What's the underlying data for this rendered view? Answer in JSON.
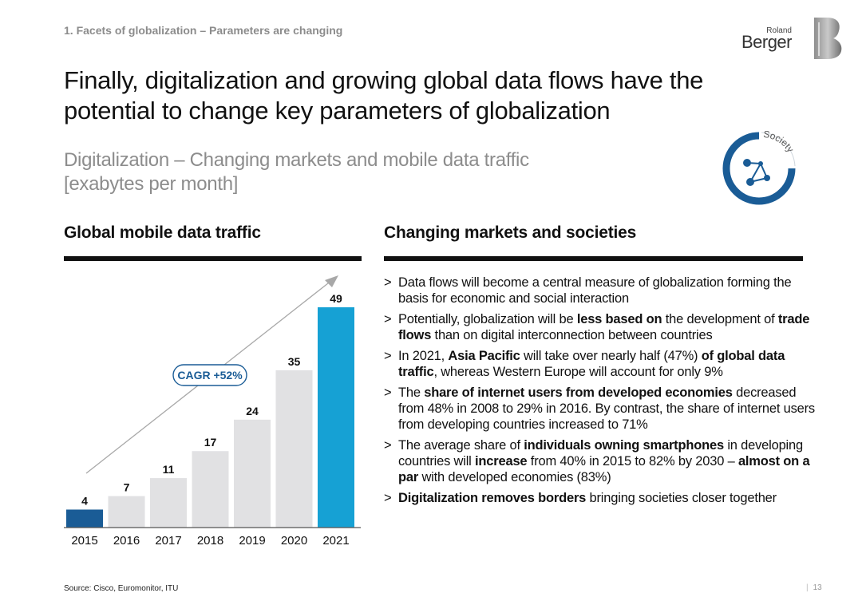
{
  "header": {
    "breadcrumb": "1. Facets of globalization – Parameters are changing",
    "logo_small": "Roland",
    "logo_big": "Berger"
  },
  "title": "Finally, digitalization and growing global data flows have the potential to change key parameters of globalization",
  "subtitle": "Digitalization – Changing markets and mobile data traffic [exabytes per month]",
  "society_label": "Society",
  "left_section": {
    "title": "Global mobile data traffic"
  },
  "right_section": {
    "title": "Changing markets and societies",
    "bullets": [
      [
        {
          "t": "Data flows will become a central measure of globalization forming the basis for economic and social interaction",
          "b": false
        }
      ],
      [
        {
          "t": "Potentially, globalization will be ",
          "b": false
        },
        {
          "t": "less based on",
          "b": true
        },
        {
          "t": " the development of ",
          "b": false
        },
        {
          "t": "trade flows",
          "b": true
        },
        {
          "t": " than on digital interconnection between countries",
          "b": false
        }
      ],
      [
        {
          "t": "In 2021, ",
          "b": false
        },
        {
          "t": "Asia Pacific",
          "b": true
        },
        {
          "t": " will take over nearly half (47%) ",
          "b": false
        },
        {
          "t": "of global data traffic",
          "b": true
        },
        {
          "t": ", whereas Western Europe will account for only 9%",
          "b": false
        }
      ],
      [
        {
          "t": "The ",
          "b": false
        },
        {
          "t": "share of internet users from developed economies",
          "b": true
        },
        {
          "t": " decreased from 48% in 2008 to 29% in 2016. By contrast, the share of internet users from developing countries increased to 71%",
          "b": false
        }
      ],
      [
        {
          "t": "The average share of ",
          "b": false
        },
        {
          "t": "individuals owning smartphones",
          "b": true
        },
        {
          "t": " in developing countries will ",
          "b": false
        },
        {
          "t": "increase",
          "b": true
        },
        {
          "t": " from 40% in 2015 to 82% by 2030 – ",
          "b": false
        },
        {
          "t": "almost on a par",
          "b": true
        },
        {
          "t": " with developed economies (83%)",
          "b": false
        }
      ],
      [
        {
          "t": "Digitalization removes borders",
          "b": true
        },
        {
          "t": " bringing societies closer together",
          "b": false
        }
      ]
    ]
  },
  "chart_data": {
    "type": "bar",
    "categories": [
      "2015",
      "2016",
      "2017",
      "2018",
      "2019",
      "2020",
      "2021"
    ],
    "values": [
      4,
      7,
      11,
      17,
      24,
      35,
      49
    ],
    "ylim": [
      0,
      49
    ],
    "annotation": "CAGR +52%",
    "grid": false,
    "colors": {
      "first": "#1a5c96",
      "middle": "#e1e1e3",
      "last": "#16a1d4",
      "arrow": "#a8a8a8",
      "annotation": "#1a5c96"
    }
  },
  "footer": {
    "source": "Source: Cisco, Euromonitor, ITU",
    "page": "13"
  }
}
